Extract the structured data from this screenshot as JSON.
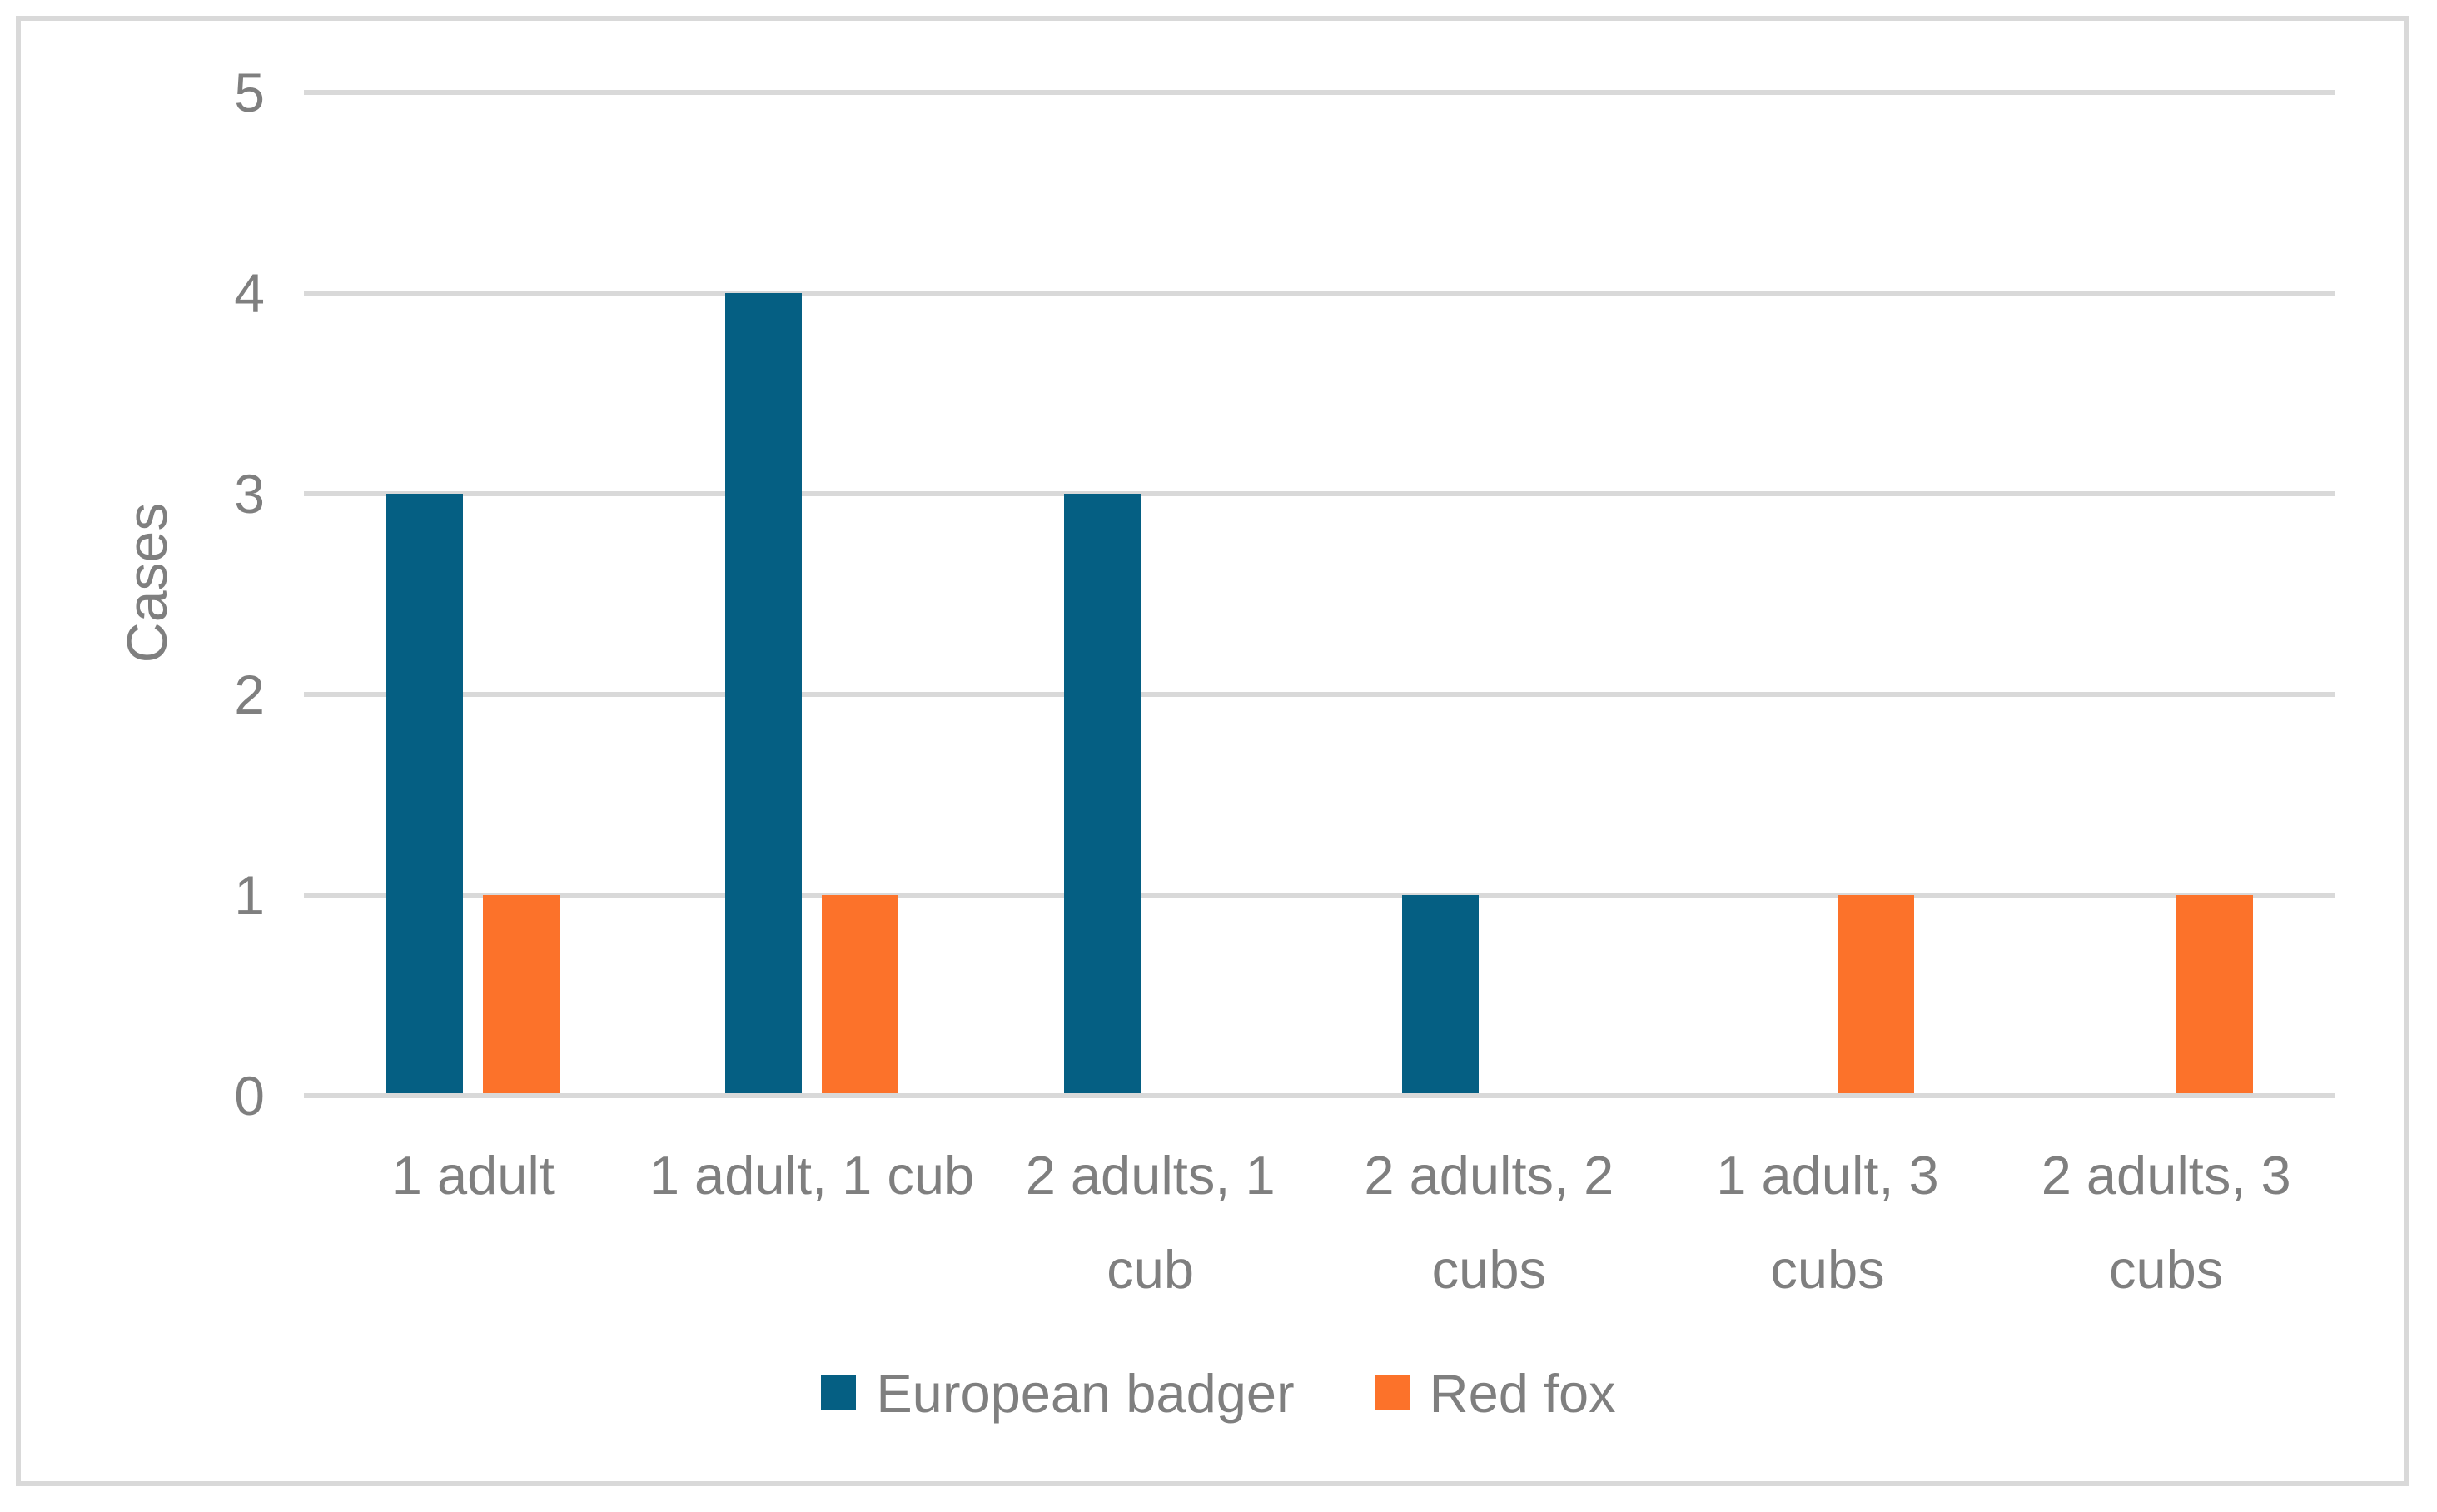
{
  "chart_data": {
    "type": "bar",
    "title": "",
    "ylabel": "Cases",
    "xlabel": "",
    "categories": [
      "1 adult",
      "1 adult, 1 cub",
      "2 adults, 1 cub",
      "2 adults, 2 cubs",
      "1 adult, 3 cubs",
      "2 adults, 3 cubs"
    ],
    "series": [
      {
        "name": "European badger",
        "color": "#055F83",
        "values": [
          3,
          4,
          3,
          1,
          0,
          0
        ]
      },
      {
        "name": "Red fox",
        "color": "#FC722A",
        "values": [
          1,
          1,
          0,
          0,
          1,
          1
        ]
      }
    ],
    "ylim": [
      0,
      5
    ],
    "yticks": [
      0,
      1,
      2,
      3,
      4,
      5
    ],
    "grid": "horizontal",
    "legend_position": "bottom"
  },
  "colors": {
    "gridline": "#D9D9D9",
    "frame_border": "#D9D9D9",
    "text": "#7F7F7F",
    "background": "#FFFFFF"
  }
}
